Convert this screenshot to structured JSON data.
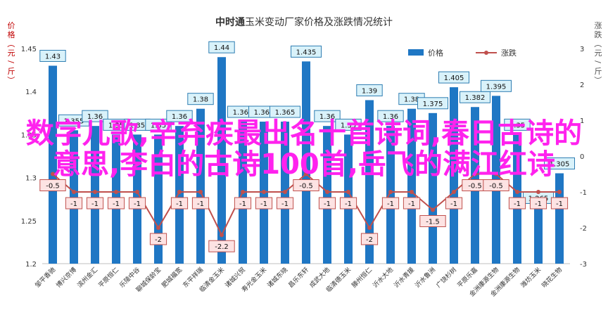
{
  "colors": {
    "bar": "#1F77C4",
    "line": "#C0504D",
    "label_bar_fill": "#D9F2FA",
    "label_bar_stroke": "#2E7DB2",
    "label_line_fill": "#FDE3E3",
    "label_line_stroke": "#C0504D",
    "overlay_text": "#FF22EE",
    "grid": "#D9D9D9",
    "axis_text": "#333333",
    "left_axis_title": "#C00000"
  },
  "overlay_text": "数字儿歌,辛弃疾最出名十首诗词,春日古诗的意思,李白的古诗100首,岳飞的满江红诗",
  "chart_data": {
    "type": "bar",
    "title": "中时通玉米变动厂家价格及涨跌情况统计",
    "title_highlight": "中时通",
    "ylabel": "价格（元/斤）",
    "y2label": "涨跌（元/斤）",
    "ylim": [
      1.2,
      1.45
    ],
    "yticks": [
      "1.45",
      "1.4",
      "1.35",
      "1.3",
      "1.25",
      "1.2"
    ],
    "y2lim": [
      -3,
      3
    ],
    "y2ticks": [
      "3",
      "2",
      "1",
      "0",
      "-1",
      "-2",
      "-3"
    ],
    "grid": false,
    "legend_position": "top-right",
    "categories": [
      "邹平香驰",
      "博兴京博",
      "滨州金汇",
      "平原恒仁",
      "乐陵中谷",
      "聊城保龄宝",
      "肥城福宽",
      "东平祥瑞",
      "临清金玉米",
      "诸城兴贸",
      "寿光金玉米",
      "诸城东晓",
      "昌乐东轩",
      "成武大地",
      "临清德玉米",
      "滕州恒仁",
      "沂水大地",
      "沂水青援",
      "沂水鲁洲",
      "广饶杉树",
      "平原乐嘉",
      "金洲康源生物",
      "金洲康源生物",
      "潍坊玉米",
      "晓花生物"
    ],
    "series": [
      {
        "name": "价格",
        "kind": "bar",
        "values": [
          1.43,
          1.355,
          1.36,
          1.35,
          1.35,
          1.35,
          1.36,
          1.38,
          1.44,
          1.365,
          1.365,
          1.365,
          1.435,
          1.36,
          1.35,
          1.39,
          1.36,
          1.38,
          1.375,
          1.405,
          1.382,
          1.395,
          1.35,
          1.265,
          1.305
        ]
      },
      {
        "name": "涨跌",
        "kind": "line",
        "values": [
          -0.5,
          -1,
          -1,
          -1,
          -1,
          -2,
          -1,
          -1,
          -2.2,
          -1,
          -1,
          -1,
          -0.5,
          -1,
          -1,
          -2,
          -1,
          -1,
          -1.5,
          -1,
          -0.5,
          -0.5,
          -1,
          -1,
          -1
        ]
      }
    ]
  }
}
